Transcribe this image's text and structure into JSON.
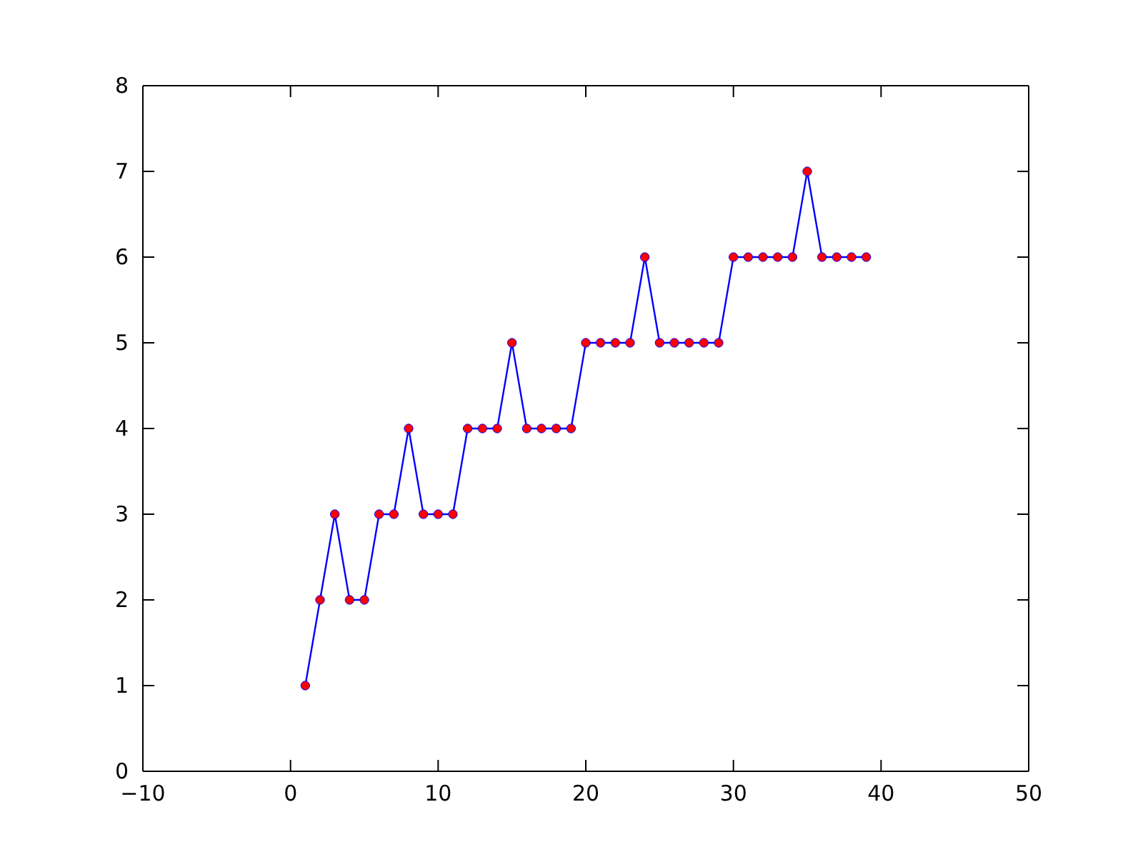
{
  "chart_data": {
    "type": "line",
    "x": [
      1,
      2,
      3,
      4,
      5,
      6,
      7,
      8,
      9,
      10,
      11,
      12,
      13,
      14,
      15,
      16,
      17,
      18,
      19,
      20,
      21,
      22,
      23,
      24,
      25,
      26,
      27,
      28,
      29,
      30,
      31,
      32,
      33,
      34,
      35,
      36,
      37,
      38,
      39
    ],
    "series": [
      {
        "color": "#0000ff",
        "marker": "none",
        "values": [
          1,
          2,
          3,
          2,
          2,
          3,
          3,
          4,
          3,
          3,
          3,
          4,
          4,
          4,
          5,
          4,
          4,
          4,
          4,
          5,
          5,
          5,
          5,
          6,
          5,
          5,
          5,
          5,
          5,
          6,
          6,
          6,
          6,
          6,
          7,
          6,
          6,
          6,
          6
        ]
      },
      {
        "type": "scatter",
        "color": "#ff0000",
        "marker": "circle",
        "values": [
          1,
          2,
          3,
          2,
          2,
          3,
          3,
          4,
          3,
          3,
          3,
          4,
          4,
          4,
          5,
          4,
          4,
          4,
          4,
          5,
          5,
          5,
          5,
          6,
          5,
          5,
          5,
          5,
          5,
          6,
          6,
          6,
          6,
          6,
          7,
          6,
          6,
          6,
          6
        ]
      }
    ],
    "xlim": [
      -10,
      50
    ],
    "xticks": [
      -10,
      0,
      10,
      20,
      30,
      40,
      50
    ],
    "ylim": [
      0,
      8
    ],
    "yticks": [
      0,
      1,
      2,
      3,
      4,
      5,
      6,
      7,
      8
    ],
    "grid": false
  }
}
